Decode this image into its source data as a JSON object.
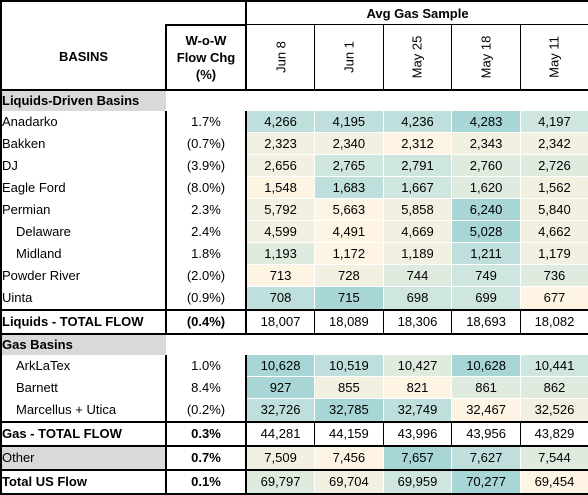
{
  "header": {
    "group_title": "Avg Gas Sample",
    "basins_label": "BASINS",
    "wow_label": [
      "W-o-W",
      "Flow Chg",
      "(%)"
    ],
    "dates": [
      "Jun 8",
      "Jun 1",
      "May 25",
      "May 18",
      "May 11"
    ]
  },
  "sections": [
    {
      "title": "Liquids-Driven Basins",
      "rows": [
        {
          "name": "Anadarko",
          "indent": false,
          "wow": "1.7%",
          "values": [
            "4,266",
            "4,195",
            "4,236",
            "4,283",
            "4,197"
          ],
          "heat": [
            4,
            4,
            4,
            5,
            3
          ]
        },
        {
          "name": "Bakken",
          "indent": false,
          "wow": "(0.7%)",
          "values": [
            "2,323",
            "2,340",
            "2,312",
            "2,343",
            "2,342"
          ],
          "heat": [
            1,
            1,
            0,
            1,
            1
          ]
        },
        {
          "name": "DJ",
          "indent": false,
          "wow": "(3.9%)",
          "values": [
            "2,656",
            "2,765",
            "2,791",
            "2,760",
            "2,726"
          ],
          "heat": [
            1,
            3,
            3,
            2,
            2
          ]
        },
        {
          "name": "Eagle Ford",
          "indent": false,
          "wow": "(8.0%)",
          "values": [
            "1,548",
            "1,683",
            "1,667",
            "1,620",
            "1,562"
          ],
          "heat": [
            0,
            4,
            3,
            2,
            1
          ]
        },
        {
          "name": "Permian",
          "indent": false,
          "wow": "2.3%",
          "values": [
            "5,792",
            "5,663",
            "5,858",
            "6,240",
            "5,840"
          ],
          "heat": [
            1,
            0,
            1,
            5,
            1
          ]
        },
        {
          "name": "Delaware",
          "indent": true,
          "wow": "2.4%",
          "values": [
            "4,599",
            "4,491",
            "4,669",
            "5,028",
            "4,662"
          ],
          "heat": [
            1,
            0,
            1,
            5,
            1
          ]
        },
        {
          "name": "Midland",
          "indent": true,
          "wow": "1.8%",
          "values": [
            "1,193",
            "1,172",
            "1,189",
            "1,211",
            "1,179"
          ],
          "heat": [
            2,
            0,
            1,
            4,
            1
          ]
        },
        {
          "name": "Powder River",
          "indent": false,
          "wow": "(2.0%)",
          "values": [
            "713",
            "728",
            "744",
            "749",
            "736"
          ],
          "heat": [
            0,
            1,
            2,
            3,
            2
          ]
        },
        {
          "name": "Uinta",
          "indent": false,
          "wow": "(0.9%)",
          "values": [
            "708",
            "715",
            "698",
            "699",
            "677"
          ],
          "heat": [
            4,
            5,
            3,
            3,
            0
          ]
        }
      ],
      "total": {
        "name": "Liquids - TOTAL FLOW",
        "wow": "(0.4%)",
        "values": [
          "18,007",
          "18,089",
          "18,306",
          "18,693",
          "18,082"
        ]
      }
    },
    {
      "title": "Gas Basins",
      "rows": [
        {
          "name": "ArkLaTex",
          "indent": true,
          "wow": "1.0%",
          "values": [
            "10,628",
            "10,519",
            "10,427",
            "10,628",
            "10,441"
          ],
          "heat": [
            5,
            4,
            2,
            5,
            3
          ]
        },
        {
          "name": "Barnett",
          "indent": true,
          "wow": "8.4%",
          "values": [
            "927",
            "855",
            "821",
            "861",
            "862"
          ],
          "heat": [
            5,
            1,
            0,
            2,
            2
          ]
        },
        {
          "name": "Marcellus + Utica",
          "indent": true,
          "wow": "(0.2%)",
          "values": [
            "32,726",
            "32,785",
            "32,749",
            "32,467",
            "32,526"
          ],
          "heat": [
            4,
            5,
            4,
            0,
            1
          ]
        }
      ],
      "total": {
        "name": "Gas - TOTAL FLOW",
        "wow": "0.3%",
        "values": [
          "44,281",
          "44,159",
          "43,996",
          "43,956",
          "43,829"
        ]
      }
    }
  ],
  "other": {
    "name": "Other",
    "wow": "0.7%",
    "values": [
      "7,509",
      "7,456",
      "7,657",
      "7,627",
      "7,544"
    ],
    "heat": [
      1,
      0,
      5,
      4,
      2
    ]
  },
  "grand_total": {
    "name": "Total US Flow",
    "wow": "0.1%",
    "values": [
      "69,797",
      "69,704",
      "69,959",
      "70,277",
      "69,454"
    ],
    "heat": [
      2,
      1,
      3,
      5,
      0
    ]
  }
}
